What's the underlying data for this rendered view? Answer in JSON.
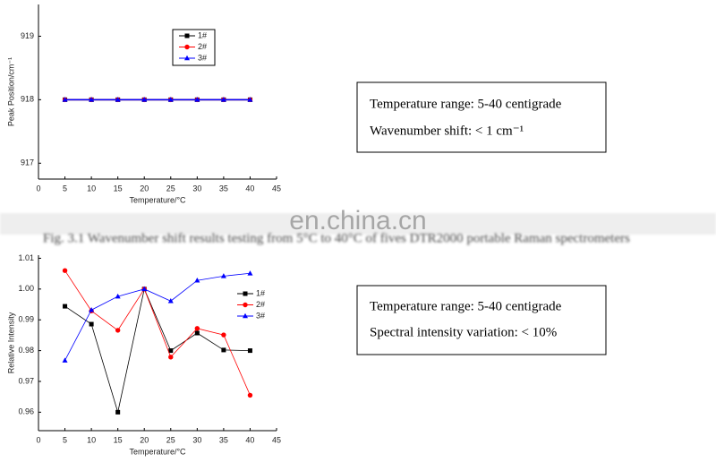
{
  "chart_data": [
    {
      "type": "line",
      "x_label": "Temperature/°C",
      "y_label": "Peak Position/cm⁻¹",
      "x": [
        5,
        10,
        15,
        20,
        25,
        30,
        35,
        40
      ],
      "series": [
        {
          "name": "1#",
          "color": "#000000",
          "marker": "square",
          "values": [
            918,
            918,
            918,
            918,
            918,
            918,
            918,
            918
          ]
        },
        {
          "name": "2#",
          "color": "#ff0000",
          "marker": "circle",
          "values": [
            918,
            918,
            918,
            918,
            918,
            918,
            918,
            918
          ]
        },
        {
          "name": "3#",
          "color": "#0000ff",
          "marker": "triangle",
          "values": [
            918,
            918,
            918,
            918,
            918,
            918,
            918,
            918
          ]
        }
      ],
      "xlim": [
        0,
        45
      ],
      "xticks": [
        0,
        5,
        10,
        15,
        20,
        25,
        30,
        35,
        40,
        45
      ],
      "ylim": [
        916.75,
        919.5
      ],
      "yticks": [
        917,
        918,
        919
      ],
      "legend": "upper center",
      "legend_frame": true
    },
    {
      "type": "line",
      "x_label": "Temperature/°C",
      "y_label": "Relative Intensity",
      "x": [
        5,
        10,
        15,
        20,
        25,
        30,
        35,
        40
      ],
      "series": [
        {
          "name": "1#",
          "color": "#000000",
          "marker": "square",
          "values": [
            0.9944,
            0.9886,
            0.96,
            1.0,
            0.98,
            0.9857,
            0.9802,
            0.98
          ]
        },
        {
          "name": "2#",
          "color": "#ff0000",
          "marker": "circle",
          "values": [
            1.006,
            0.9929,
            0.9866,
            1.0,
            0.9779,
            0.9872,
            0.9851,
            0.9655
          ]
        },
        {
          "name": "3#",
          "color": "#0000ff",
          "marker": "triangle",
          "values": [
            0.9768,
            0.9932,
            0.9976,
            1.0,
            0.9961,
            1.0028,
            1.0042,
            1.0051
          ]
        }
      ],
      "xlim": [
        0,
        45
      ],
      "xticks": [
        0,
        5,
        10,
        15,
        20,
        25,
        30,
        35,
        40,
        45
      ],
      "ylim": [
        0.954,
        1.011
      ],
      "yticks": [
        0.96,
        0.97,
        0.98,
        0.99,
        {
          "value": 1.0,
          "label": "1.00"
        },
        1.01
      ],
      "legend": "upper right",
      "legend_frame": false
    }
  ],
  "notes": [
    {
      "lines": [
        "Temperature range: 5-40 centigrade",
        "Wavenumber shift: < 1 cm⁻¹"
      ]
    },
    {
      "lines": [
        "Temperature range: 5-40 centigrade",
        "Spectral intensity variation: < 10%"
      ]
    }
  ],
  "caption": "Fig. 3.1 Wavenumber shift results testing from 5°C to 40°C of fives DTR2000 portable Raman spectrometers",
  "watermark": "en.china.cn"
}
